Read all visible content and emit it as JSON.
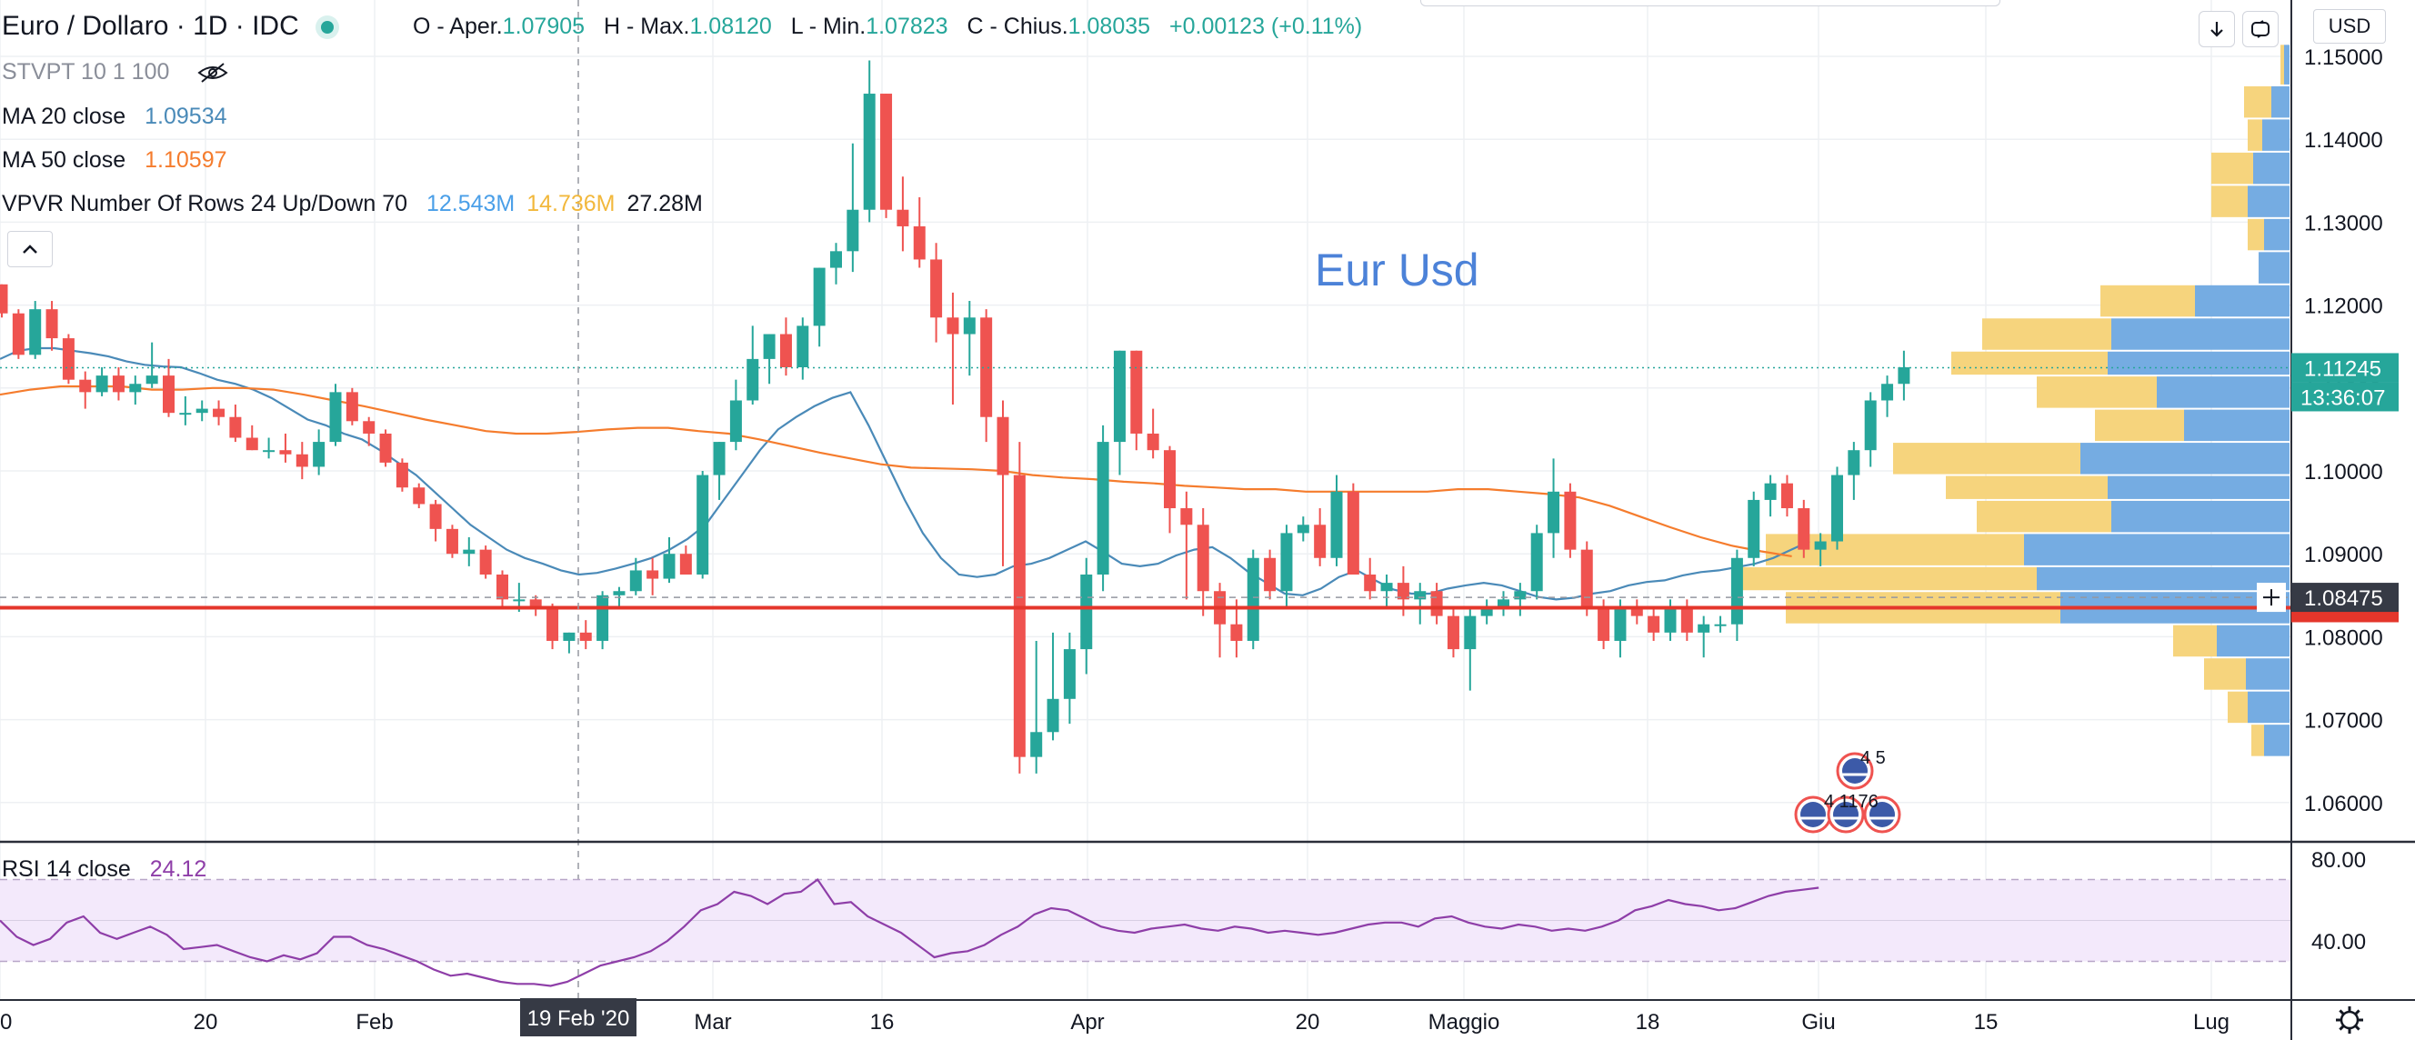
{
  "header": {
    "symbol_title": "Euro / Dollaro · 1D · IDC",
    "ohlc": [
      {
        "key": "O - Aper.",
        "value": "1.07905"
      },
      {
        "key": "H - Max.",
        "value": "1.08120"
      },
      {
        "key": "L - Min.",
        "value": "1.07823"
      },
      {
        "key": "C - Chius.",
        "value": "1.08035"
      }
    ],
    "change": "+0.00123 (+0.11%)",
    "currency": "USD",
    "down_arrow_icon": "arrow-down-icon",
    "toggle_icon": "fullscreen-icon"
  },
  "indicators": {
    "stvpt": "STVPT 10 1 100",
    "ma20_label": "MA 20 close",
    "ma20_value": "1.09534",
    "ma50_label": "MA 50 close",
    "ma50_value": "1.10597",
    "vpvr_label": "VPVR Number Of Rows 24 Up/Down 70",
    "vpvr_up": "12.543M",
    "vpvr_down": "14.736M",
    "vpvr_total": "27.28M",
    "rsi_label": "RSI 14 close",
    "rsi_value": "24.12"
  },
  "watermark": "Eur Usd",
  "colors": {
    "up": "#26a69a",
    "down": "#ef5350",
    "ma20": "#4a8ab8",
    "ma50": "#f57c2d",
    "rsi": "#8e3ea8",
    "vp_blue": "#6ea8e0",
    "vp_yellow": "#f6d276",
    "hline": "#e4362b"
  },
  "price_axis": {
    "ticks": [
      "1.15000",
      "1.14000",
      "1.13000",
      "1.12000",
      "1.11000",
      "1.10000",
      "1.09000",
      "1.08000",
      "1.07000",
      "1.06000"
    ],
    "last_price": "1.11245",
    "countdown": "13:36:07",
    "crosshair_price": "1.08475"
  },
  "time_axis": {
    "ticks": [
      "0",
      "20",
      "Feb",
      "Mar",
      "16",
      "Apr",
      "20",
      "Maggio",
      "18",
      "Giu",
      "15",
      "Lug"
    ],
    "crosshair_date": "19 Feb '20"
  },
  "rsi_axis": {
    "ticks": [
      "80.00",
      "40.00"
    ]
  },
  "events": {
    "top_badge": "4 5",
    "bottom_badge": "4 1176"
  },
  "chart_data": {
    "type": "candlestick",
    "price_range": [
      1.056,
      1.154
    ],
    "rsi_range": [
      20,
      85
    ],
    "hline_price": 1.0835,
    "candles": [
      [
        1.1225,
        1.1225,
        1.1185,
        1.119
      ],
      [
        1.119,
        1.1195,
        1.1135,
        1.114
      ],
      [
        1.114,
        1.1205,
        1.1135,
        1.1195
      ],
      [
        1.1195,
        1.1205,
        1.1145,
        1.116
      ],
      [
        1.116,
        1.1165,
        1.1105,
        1.111
      ],
      [
        1.111,
        1.112,
        1.1075,
        1.1095
      ],
      [
        1.1095,
        1.1125,
        1.109,
        1.1115
      ],
      [
        1.1115,
        1.1125,
        1.1085,
        1.1095
      ],
      [
        1.1095,
        1.1115,
        1.108,
        1.1105
      ],
      [
        1.1105,
        1.1155,
        1.11,
        1.1115
      ],
      [
        1.1115,
        1.1135,
        1.1065,
        1.107
      ],
      [
        1.107,
        1.109,
        1.1055,
        1.107
      ],
      [
        1.107,
        1.1085,
        1.106,
        1.1075
      ],
      [
        1.1075,
        1.1085,
        1.1055,
        1.1065
      ],
      [
        1.1065,
        1.108,
        1.1035,
        1.104
      ],
      [
        1.104,
        1.1055,
        1.1025,
        1.1025
      ],
      [
        1.1025,
        1.104,
        1.1015,
        1.1025
      ],
      [
        1.1025,
        1.1045,
        1.101,
        1.102
      ],
      [
        1.102,
        1.1035,
        1.099,
        1.1005
      ],
      [
        1.1005,
        1.105,
        1.0995,
        1.1035
      ],
      [
        1.1035,
        1.1105,
        1.103,
        1.1095
      ],
      [
        1.1095,
        1.11,
        1.1055,
        1.106
      ],
      [
        1.106,
        1.1065,
        1.103,
        1.1045
      ],
      [
        1.1045,
        1.105,
        1.1005,
        1.101
      ],
      [
        1.101,
        1.1015,
        1.0975,
        1.098
      ],
      [
        1.098,
        1.0985,
        1.0955,
        1.096
      ],
      [
        1.096,
        1.0965,
        1.0915,
        1.093
      ],
      [
        1.093,
        1.0935,
        1.0895,
        1.09
      ],
      [
        1.09,
        1.092,
        1.0885,
        1.0905
      ],
      [
        1.0905,
        1.091,
        1.087,
        1.0875
      ],
      [
        1.0875,
        1.088,
        1.0835,
        1.0845
      ],
      [
        1.0845,
        1.0865,
        1.083,
        1.0845
      ],
      [
        1.0845,
        1.085,
        1.0825,
        1.0835
      ],
      [
        1.0835,
        1.084,
        1.0785,
        1.0795
      ],
      [
        1.0795,
        1.0805,
        1.078,
        1.0805
      ],
      [
        1.0805,
        1.082,
        1.0785,
        1.0795
      ],
      [
        1.0795,
        1.0855,
        1.0785,
        1.085
      ],
      [
        1.085,
        1.086,
        1.0835,
        1.0855
      ],
      [
        1.0855,
        1.0895,
        1.085,
        1.088
      ],
      [
        1.088,
        1.0895,
        1.085,
        1.087
      ],
      [
        1.087,
        1.092,
        1.0865,
        1.09
      ],
      [
        1.09,
        1.091,
        1.0875,
        1.0875
      ],
      [
        1.0875,
        1.1,
        1.087,
        1.0995
      ],
      [
        1.0995,
        1.1035,
        1.0965,
        1.1035
      ],
      [
        1.1035,
        1.111,
        1.1025,
        1.1085
      ],
      [
        1.1085,
        1.1175,
        1.108,
        1.1135
      ],
      [
        1.1135,
        1.1165,
        1.1105,
        1.1165
      ],
      [
        1.1165,
        1.1185,
        1.1115,
        1.1125
      ],
      [
        1.1125,
        1.1185,
        1.111,
        1.1175
      ],
      [
        1.1175,
        1.1245,
        1.115,
        1.1245
      ],
      [
        1.1245,
        1.1275,
        1.1225,
        1.1265
      ],
      [
        1.1265,
        1.1395,
        1.124,
        1.1315
      ],
      [
        1.1315,
        1.1495,
        1.13,
        1.1455
      ],
      [
        1.1455,
        1.1455,
        1.1305,
        1.1315
      ],
      [
        1.1315,
        1.1355,
        1.1265,
        1.1295
      ],
      [
        1.1295,
        1.133,
        1.1245,
        1.1255
      ],
      [
        1.1255,
        1.1275,
        1.1155,
        1.1185
      ],
      [
        1.1185,
        1.1215,
        1.108,
        1.1165
      ],
      [
        1.1165,
        1.1205,
        1.1115,
        1.1185
      ],
      [
        1.1185,
        1.1195,
        1.1035,
        1.1065
      ],
      [
        1.1065,
        1.1085,
        1.0885,
        1.0995
      ],
      [
        1.0995,
        1.1035,
        1.0635,
        1.0655
      ],
      [
        1.0655,
        1.0795,
        1.0635,
        1.0685
      ],
      [
        1.0685,
        1.0805,
        1.0675,
        1.0725
      ],
      [
        1.0725,
        1.0805,
        1.0695,
        1.0785
      ],
      [
        1.0785,
        1.0895,
        1.0755,
        1.0875
      ],
      [
        1.0875,
        1.1055,
        1.0855,
        1.1035
      ],
      [
        1.1035,
        1.1145,
        1.0995,
        1.1145
      ],
      [
        1.1145,
        1.1145,
        1.1025,
        1.1045
      ],
      [
        1.1045,
        1.1075,
        1.1015,
        1.1025
      ],
      [
        1.1025,
        1.103,
        1.0925,
        1.0955
      ],
      [
        1.0955,
        1.0975,
        1.0845,
        1.0935
      ],
      [
        1.0935,
        1.0955,
        1.0825,
        1.0855
      ],
      [
        1.0855,
        1.0865,
        1.0775,
        1.0815
      ],
      [
        1.0815,
        1.0845,
        1.0775,
        1.0795
      ],
      [
        1.0795,
        1.0905,
        1.0785,
        1.0895
      ],
      [
        1.0895,
        1.0905,
        1.0845,
        1.0855
      ],
      [
        1.0855,
        1.0935,
        1.0835,
        1.0925
      ],
      [
        1.0925,
        1.0945,
        1.0915,
        1.0935
      ],
      [
        1.0935,
        1.0955,
        1.0885,
        1.0895
      ],
      [
        1.0895,
        1.0995,
        1.0885,
        1.0975
      ],
      [
        1.0975,
        1.0985,
        1.0875,
        1.0875
      ],
      [
        1.0875,
        1.0895,
        1.0845,
        1.0855
      ],
      [
        1.0855,
        1.0875,
        1.0835,
        1.0865
      ],
      [
        1.0865,
        1.0885,
        1.0825,
        1.0845
      ],
      [
        1.0845,
        1.0865,
        1.0815,
        1.0855
      ],
      [
        1.0855,
        1.0865,
        1.0815,
        1.0825
      ],
      [
        1.0825,
        1.0835,
        1.0775,
        1.0785
      ],
      [
        1.0785,
        1.0835,
        1.0735,
        1.0825
      ],
      [
        1.0825,
        1.0845,
        1.0815,
        1.0835
      ],
      [
        1.0835,
        1.0855,
        1.0825,
        1.0845
      ],
      [
        1.0845,
        1.0865,
        1.0825,
        1.0855
      ],
      [
        1.0855,
        1.0935,
        1.0845,
        1.0925
      ],
      [
        1.0925,
        1.1015,
        1.0895,
        1.0975
      ],
      [
        1.0975,
        1.0985,
        1.0895,
        1.0905
      ],
      [
        1.0905,
        1.0915,
        1.0825,
        1.0835
      ],
      [
        1.0835,
        1.0845,
        1.0785,
        1.0795
      ],
      [
        1.0795,
        1.0845,
        1.0775,
        1.0835
      ],
      [
        1.0835,
        1.0845,
        1.0815,
        1.0825
      ],
      [
        1.0825,
        1.0835,
        1.0795,
        1.0805
      ],
      [
        1.0805,
        1.0845,
        1.0795,
        1.0835
      ],
      [
        1.0835,
        1.0845,
        1.0795,
        1.0805
      ],
      [
        1.0805,
        1.0825,
        1.0775,
        1.0815
      ],
      [
        1.0815,
        1.0825,
        1.0805,
        1.0815
      ],
      [
        1.0815,
        1.0905,
        1.0795,
        1.0895
      ],
      [
        1.0895,
        1.0975,
        1.0885,
        1.0965
      ],
      [
        1.0965,
        1.0995,
        1.0945,
        1.0985
      ],
      [
        1.0985,
        1.0995,
        1.0945,
        1.0955
      ],
      [
        1.0955,
        1.0965,
        1.0895,
        1.0905
      ],
      [
        1.0905,
        1.0925,
        1.0885,
        1.0915
      ],
      [
        1.0915,
        1.1005,
        1.0905,
        1.0995
      ],
      [
        1.0995,
        1.1035,
        1.0965,
        1.1025
      ],
      [
        1.1025,
        1.1095,
        1.1005,
        1.1085
      ],
      [
        1.1085,
        1.1115,
        1.1065,
        1.1105
      ],
      [
        1.1105,
        1.1145,
        1.1085,
        1.1125
      ]
    ],
    "ma20": [
      1.1135,
      1.1145,
      1.1148,
      1.1148,
      1.1145,
      1.1142,
      1.1138,
      1.1132,
      1.1128,
      1.1126,
      1.1125,
      1.1118,
      1.111,
      1.1105,
      1.1098,
      1.1088,
      1.1075,
      1.1062,
      1.1055,
      1.1045,
      1.1038,
      1.1025,
      1.101,
      1.0995,
      1.0975,
      1.0955,
      1.0935,
      1.092,
      1.0905,
      1.0895,
      1.0888,
      1.088,
      1.0875,
      1.0877,
      1.0882,
      1.0888,
      1.0895,
      1.0905,
      1.0918,
      1.0935,
      1.0965,
      1.0995,
      1.1025,
      1.105,
      1.1065,
      1.1078,
      1.1088,
      1.1095,
      1.1055,
      1.101,
      1.0965,
      1.0925,
      1.0895,
      1.0875,
      1.0872,
      1.0875,
      1.0885,
      1.0888,
      1.0895,
      1.0905,
      1.0915,
      1.0902,
      1.0888,
      1.0885,
      1.0888,
      1.0898,
      1.0905,
      1.0908,
      1.0895,
      1.0878,
      1.0865,
      1.0852,
      1.085,
      1.0858,
      1.0872,
      1.088,
      1.0868,
      1.0857,
      1.0852,
      1.0852,
      1.0858,
      1.0862,
      1.0865,
      1.0862,
      1.0855,
      1.0848,
      1.0845,
      1.0847,
      1.0852,
      1.0855,
      1.0862,
      1.0866,
      1.0868,
      1.0874,
      1.0878,
      1.088,
      1.0884,
      1.0888,
      1.0895,
      1.0905,
      1.0915
    ],
    "ma50": [
      1.1092,
      1.1098,
      1.1102,
      1.1102,
      1.1102,
      1.1098,
      1.1098,
      1.11,
      1.11,
      1.1098,
      1.1092,
      1.1085,
      1.1078,
      1.107,
      1.1062,
      1.1055,
      1.1048,
      1.1045,
      1.1045,
      1.1047,
      1.105,
      1.1052,
      1.1052,
      1.1048,
      1.1045,
      1.1038,
      1.103,
      1.1022,
      1.1015,
      1.1008,
      1.1004,
      1.1003,
      1.1002,
      1.1,
      1.0995,
      1.0992,
      1.099,
      1.0987,
      1.0985,
      1.0982,
      1.098,
      1.0978,
      1.0978,
      1.0975,
      1.0975,
      1.0975,
      1.0975,
      1.0975,
      1.0978,
      1.0978,
      1.0975,
      1.0972,
      1.0968,
      1.0958,
      1.0945,
      1.0932,
      1.092,
      1.091,
      1.0903,
      1.0897
    ],
    "rsi": [
      50,
      42,
      38,
      41,
      49,
      52,
      44,
      41,
      44,
      47,
      43,
      36,
      37,
      38,
      35,
      32,
      30,
      33,
      31,
      34,
      42,
      42,
      38,
      36,
      33,
      30,
      26,
      23,
      24,
      22,
      20,
      19,
      19,
      18,
      20,
      24,
      28,
      30,
      32,
      35,
      40,
      47,
      55,
      58,
      64,
      62,
      58,
      63,
      64,
      70,
      58,
      59,
      52,
      48,
      44,
      38,
      32,
      34,
      35,
      38,
      43,
      47,
      53,
      56,
      55,
      51,
      47,
      45,
      44,
      46,
      47,
      48,
      46,
      45,
      47,
      46,
      44,
      45,
      44,
      43,
      44,
      46,
      48,
      49,
      49,
      47,
      51,
      52,
      49,
      47,
      46,
      48,
      47,
      45,
      46,
      45,
      47,
      50,
      55,
      57,
      60,
      58,
      57,
      55,
      56,
      59,
      62,
      64,
      65,
      66
    ]
  }
}
